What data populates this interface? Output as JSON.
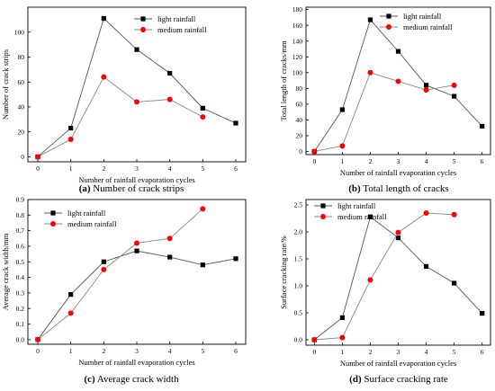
{
  "chart_data": [
    {
      "type": "line",
      "panel": "a",
      "caption_letter": "(a)",
      "caption_text": " Number of crack strips",
      "xlabel": "Number of rainfall evaporation cycles",
      "ylabel": "Number of crack strips",
      "x": [
        0,
        1,
        2,
        3,
        4,
        5,
        6
      ],
      "xlim": [
        -0.3,
        6.3
      ],
      "ylim": [
        -4,
        120
      ],
      "xticks": [
        0,
        1,
        2,
        3,
        4,
        5,
        6
      ],
      "yticks": [
        0,
        20,
        40,
        60,
        80,
        100
      ],
      "grid": false,
      "legend_position": "top-right",
      "series": [
        {
          "name": "light rainfall",
          "marker": "square",
          "color": "#000000",
          "values": [
            0,
            23,
            111,
            86,
            67,
            39,
            27
          ]
        },
        {
          "name": "medium rainfall",
          "marker": "circle",
          "color": "#ff0000",
          "values": [
            0,
            14,
            64,
            44,
            46,
            32,
            null
          ]
        }
      ]
    },
    {
      "type": "line",
      "panel": "b",
      "caption_letter": "(b)",
      "caption_text": " Total length of cracks",
      "xlabel": "Number of rainfall evaporation cycles",
      "ylabel": "Total length of cracks/mm",
      "x": [
        0,
        1,
        2,
        3,
        4,
        5,
        6
      ],
      "xlim": [
        -0.3,
        6.3
      ],
      "ylim": [
        -4,
        183
      ],
      "xticks": [
        0,
        1,
        2,
        3,
        4,
        5,
        6
      ],
      "yticks": [
        0,
        20,
        40,
        60,
        80,
        100,
        120,
        140,
        160,
        180
      ],
      "grid": false,
      "legend_position": "top-right",
      "series": [
        {
          "name": "light rainfall",
          "marker": "square",
          "color": "#000000",
          "values": [
            0,
            53,
            167,
            127,
            84,
            70,
            32
          ]
        },
        {
          "name": "medium rainfall",
          "marker": "circle",
          "color": "#ff0000",
          "values": [
            0,
            7,
            100,
            89,
            78,
            84,
            null
          ]
        }
      ]
    },
    {
      "type": "line",
      "panel": "c",
      "caption_letter": "(c)",
      "caption_text": " Average crack width",
      "xlabel": "Number of rainfall evaporation cycles",
      "ylabel": "Average crack width/mm",
      "x": [
        0,
        1,
        2,
        3,
        4,
        5,
        6
      ],
      "xlim": [
        -0.3,
        6.3
      ],
      "ylim": [
        -0.03,
        0.9
      ],
      "xticks": [
        0,
        1,
        2,
        3,
        4,
        5,
        6
      ],
      "yticks": [
        0.0,
        0.1,
        0.2,
        0.3,
        0.4,
        0.5,
        0.6,
        0.7,
        0.8,
        0.9
      ],
      "ytick_labels": [
        "0.0",
        "0.1",
        "0.2",
        "0.3",
        "0.4",
        "0.5",
        "0.6",
        "0.7",
        "0.8",
        "0.9"
      ],
      "grid": false,
      "legend_position": "top-left",
      "series": [
        {
          "name": "light rainfall",
          "marker": "square",
          "color": "#000000",
          "values": [
            0,
            0.29,
            0.5,
            0.57,
            0.53,
            0.48,
            0.52
          ]
        },
        {
          "name": "medium rainfall",
          "marker": "circle",
          "color": "#ff0000",
          "values": [
            0,
            0.17,
            0.45,
            0.62,
            0.65,
            0.84,
            null
          ]
        }
      ]
    },
    {
      "type": "line",
      "panel": "d",
      "caption_letter": "(d)",
      "caption_text": " Surface cracking rate",
      "xlabel": "Number of rainfall evaporation cycles",
      "ylabel": "Surface cracking rate/%",
      "x": [
        0,
        1,
        2,
        3,
        4,
        5,
        6
      ],
      "xlim": [
        -0.3,
        6.3
      ],
      "ylim": [
        -0.1,
        2.6
      ],
      "xticks": [
        0,
        1,
        2,
        3,
        4,
        5,
        6
      ],
      "yticks": [
        0.0,
        0.5,
        1.0,
        1.5,
        2.0,
        2.5
      ],
      "ytick_labels": [
        "0.0",
        "0.5",
        "1.0",
        "1.5",
        "2.0",
        "2.5"
      ],
      "grid": false,
      "legend_position": "top-left",
      "series": [
        {
          "name": "light rainfall",
          "marker": "square",
          "color": "#000000",
          "values": [
            0,
            0.41,
            2.28,
            1.89,
            1.36,
            1.05,
            0.49
          ]
        },
        {
          "name": "medium rainfall",
          "marker": "circle",
          "color": "#ff0000",
          "values": [
            0,
            0.04,
            1.11,
            1.99,
            2.35,
            2.32,
            null
          ]
        }
      ]
    }
  ]
}
